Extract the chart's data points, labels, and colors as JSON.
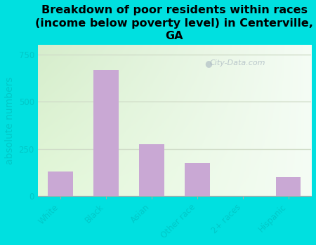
{
  "title": "Breakdown of poor residents within races\n(income below poverty level) in Centerville,\nGA",
  "categories": [
    "White",
    "Black",
    "Asian",
    "Other race",
    "2+ races",
    "Hispanic"
  ],
  "values": [
    130,
    670,
    275,
    175,
    0,
    100
  ],
  "bar_color": "#c9a8d4",
  "ylabel": "absolute numbers",
  "ylim": [
    0,
    800
  ],
  "yticks": [
    0,
    250,
    500,
    750
  ],
  "background_color": "#00e0e0",
  "plot_bg_color_left": "#d8edc8",
  "plot_bg_color_right": "#f0f8f0",
  "grid_color": "#e0e8e0",
  "watermark": "City-Data.com",
  "title_fontsize": 11.5,
  "ylabel_fontsize": 10,
  "tick_label_color": "#00c8c8",
  "axis_label_color": "#00c8c8"
}
